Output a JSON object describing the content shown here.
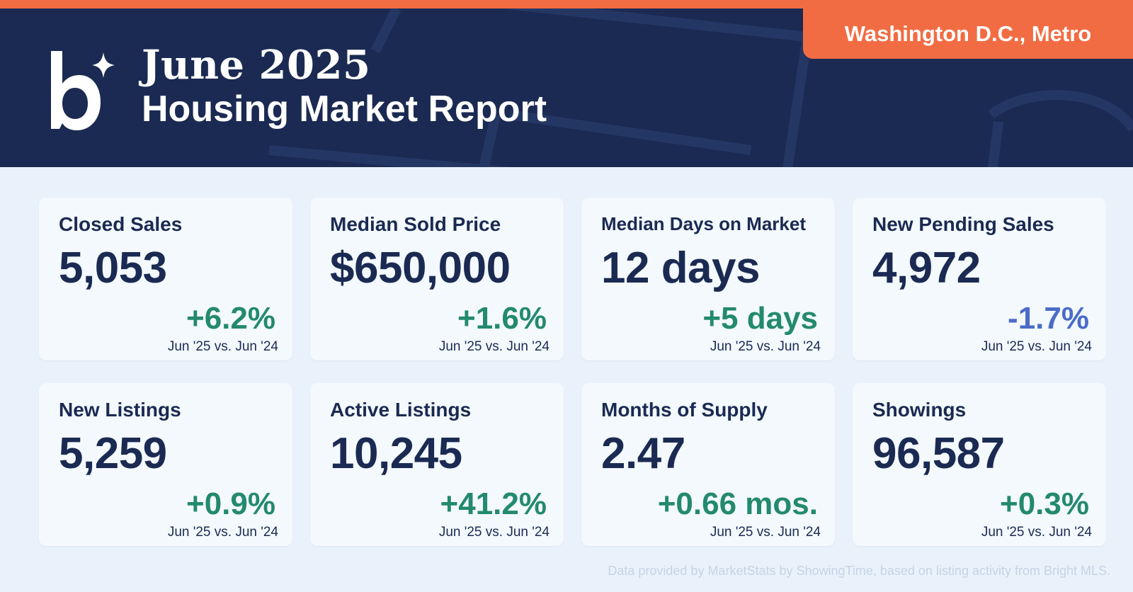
{
  "header": {
    "month": "June 2025",
    "report": "Housing Market Report",
    "region": "Washington D.C., Metro",
    "logo_icon": "brand-b-sparkle-logo"
  },
  "colors": {
    "navy": "#1b2a52",
    "accent": "#f26c43",
    "positive": "#23896f",
    "negative": "#4a6cc8",
    "background": "#e9f2fa"
  },
  "cards": [
    {
      "label": "Closed Sales",
      "value": "5,053",
      "change": "+6.2%",
      "direction": "up",
      "period": "Jun '25 vs. Jun '24"
    },
    {
      "label": "Median Sold Price",
      "value": "$650,000",
      "change": "+1.6%",
      "direction": "up",
      "period": "Jun '25 vs. Jun '24"
    },
    {
      "label": "Median Days on Market",
      "value": "12 days",
      "change": "+5 days",
      "direction": "up",
      "period": "Jun '25 vs. Jun '24"
    },
    {
      "label": "New Pending Sales",
      "value": "4,972",
      "change": "-1.7%",
      "direction": "down",
      "period": "Jun '25 vs. Jun '24"
    },
    {
      "label": "New Listings",
      "value": "5,259",
      "change": "+0.9%",
      "direction": "up",
      "period": "Jun '25 vs. Jun '24"
    },
    {
      "label": "Active Listings",
      "value": "10,245",
      "change": "+41.2%",
      "direction": "up",
      "period": "Jun '25 vs. Jun '24"
    },
    {
      "label": "Months of Supply",
      "value": "2.47",
      "change": "+0.66 mos.",
      "direction": "up",
      "period": "Jun '25 vs. Jun '24"
    },
    {
      "label": "Showings",
      "value": "96,587",
      "change": "+0.3%",
      "direction": "up",
      "period": "Jun '25 vs. Jun '24"
    }
  ],
  "footer": {
    "note": "Data provided by MarketStats by ShowingTime, based on listing activity from Bright MLS."
  }
}
